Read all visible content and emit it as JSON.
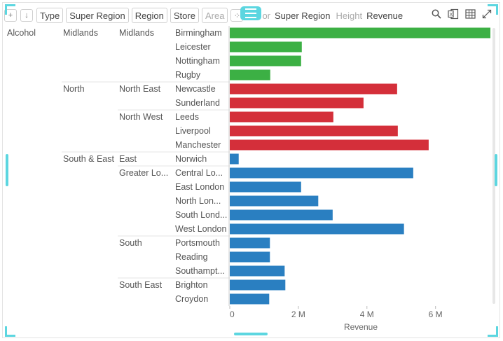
{
  "toolbar": {
    "chips": [
      "Type",
      "Super Region",
      "Region",
      "Store"
    ],
    "area_label": "Area",
    "color_prefix": "or",
    "color_label": "Super Region",
    "height_prefix": "Height",
    "height_label": "Revenue"
  },
  "icons": [
    "add-visual-icon",
    "sort-icon",
    "scatter-icon",
    "menu-icon",
    "search-icon",
    "excel-export-icon",
    "table-icon",
    "expand-icon"
  ],
  "colors": {
    "Midlands": "#3cb044",
    "North": "#d42f3a",
    "South & East": "#2a7fc1",
    "accent": "#5cd6e0"
  },
  "chart_data": {
    "type": "bar",
    "orientation": "horizontal",
    "title": "",
    "xlabel": "Revenue",
    "xlim": [
      0,
      7600000
    ],
    "xticks": [
      0,
      2000000,
      4000000,
      6000000
    ],
    "xtick_labels": [
      "0",
      "2 M",
      "4 M",
      "6 M"
    ],
    "hierarchy_headers": [
      "Type",
      "Super Region",
      "Region",
      "Store"
    ],
    "type_value": "Alcohol",
    "rows": [
      {
        "super_region": "Midlands",
        "region": "Midlands",
        "store": "Birmingham",
        "value": 7600000
      },
      {
        "super_region": "",
        "region": "",
        "store": "Leicester",
        "value": 2100000
      },
      {
        "super_region": "",
        "region": "",
        "store": "Nottingham",
        "value": 2080000
      },
      {
        "super_region": "",
        "region": "",
        "store": "Rugby",
        "value": 1180000
      },
      {
        "super_region": "North",
        "region": "North East",
        "store": "Newcastle",
        "value": 4880000
      },
      {
        "super_region": "",
        "region": "",
        "store": "Sunderland",
        "value": 3900000
      },
      {
        "super_region": "",
        "region": "North West",
        "store": "Leeds",
        "value": 3020000
      },
      {
        "super_region": "",
        "region": "",
        "store": "Liverpool",
        "value": 4900000
      },
      {
        "super_region": "",
        "region": "",
        "store": "Manchester",
        "value": 5800000
      },
      {
        "super_region": "South & East",
        "region": "East",
        "store": "Norwich",
        "value": 260000
      },
      {
        "super_region": "",
        "region": "Greater Lo...",
        "store": "Central Lo...",
        "value": 5350000
      },
      {
        "super_region": "",
        "region": "",
        "store": "East London",
        "value": 2080000
      },
      {
        "super_region": "",
        "region": "",
        "store": "North Lon...",
        "value": 2580000
      },
      {
        "super_region": "",
        "region": "",
        "store": "South Lond...",
        "value": 3000000
      },
      {
        "super_region": "",
        "region": "",
        "store": "West London",
        "value": 5080000
      },
      {
        "super_region": "",
        "region": "South",
        "store": "Portsmouth",
        "value": 1170000
      },
      {
        "super_region": "",
        "region": "",
        "store": "Reading",
        "value": 1170000
      },
      {
        "super_region": "",
        "region": "",
        "store": "Southampt...",
        "value": 1600000
      },
      {
        "super_region": "",
        "region": "South East",
        "store": "Brighton",
        "value": 1620000
      },
      {
        "super_region": "",
        "region": "",
        "store": "Croydon",
        "value": 1150000
      }
    ],
    "row_groups": [
      "Midlands",
      "Midlands",
      "Midlands",
      "Midlands",
      "North",
      "North",
      "North",
      "North",
      "North",
      "South & East",
      "South & East",
      "South & East",
      "South & East",
      "South & East",
      "South & East",
      "South & East",
      "South & East",
      "South & East",
      "South & East",
      "South & East"
    ]
  }
}
